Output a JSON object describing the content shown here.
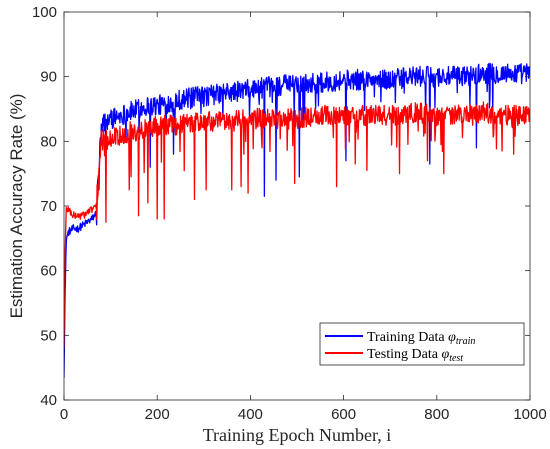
{
  "chart_data": {
    "type": "line",
    "title": "",
    "xlabel": "Training Epoch Number, i",
    "ylabel": "Estimation Accuracy Rate (%)",
    "xlim": [
      0,
      1000
    ],
    "ylim": [
      40,
      100
    ],
    "xticks": [
      "0",
      "200",
      "400",
      "600",
      "800",
      "1000"
    ],
    "yticks": [
      "40",
      "50",
      "60",
      "70",
      "80",
      "90",
      "100"
    ],
    "grid": false,
    "legend_position": "bottom-right",
    "x": [
      0,
      2,
      5,
      10,
      20,
      30,
      40,
      50,
      60,
      70,
      75,
      80,
      90,
      100,
      120,
      140,
      160,
      180,
      200,
      250,
      300,
      350,
      400,
      450,
      500,
      550,
      600,
      650,
      700,
      750,
      800,
      850,
      900,
      950,
      1000
    ],
    "series": [
      {
        "name_prefix": "Training Data ",
        "symbol": "φ",
        "subscript": "train",
        "color": "#0000ff",
        "values": [
          44,
          55,
          65,
          66,
          66.5,
          66.5,
          67,
          67.5,
          68,
          69,
          76,
          81,
          83,
          83.5,
          84,
          84.5,
          85,
          85.5,
          85.5,
          86.5,
          87,
          87.5,
          88,
          88.5,
          89,
          89,
          89.5,
          89.5,
          89.5,
          90,
          90,
          90,
          90.5,
          90.5,
          90.5
        ],
        "dips": [
          [
            75,
            72.5
          ],
          [
            185,
            76
          ],
          [
            235,
            78
          ],
          [
            430,
            71.5
          ],
          [
            455,
            74
          ],
          [
            505,
            74.5
          ],
          [
            605,
            77
          ],
          [
            785,
            76.5
          ],
          [
            885,
            79
          ]
        ]
      },
      {
        "name_prefix": "Testing Data ",
        "symbol": "φ",
        "subscript": "test",
        "color": "#ff0000",
        "values": [
          48,
          62,
          69.5,
          69.5,
          68.5,
          68.5,
          68.5,
          69,
          69.5,
          70,
          76,
          79.5,
          80,
          80.5,
          81,
          81.5,
          81.5,
          82,
          82.5,
          82.5,
          83,
          83,
          83.5,
          83.5,
          83.5,
          84,
          84,
          84,
          84,
          84.5,
          84,
          84,
          84.5,
          84,
          84
        ],
        "dips": [
          [
            90,
            67.5
          ],
          [
            140,
            72.5
          ],
          [
            160,
            68.5
          ],
          [
            180,
            70.5
          ],
          [
            200,
            68
          ],
          [
            215,
            68
          ],
          [
            280,
            71
          ],
          [
            305,
            72.5
          ],
          [
            360,
            72.5
          ],
          [
            380,
            73
          ],
          [
            395,
            72
          ],
          [
            495,
            73.5
          ],
          [
            585,
            73
          ],
          [
            625,
            76.5
          ],
          [
            650,
            75.5
          ],
          [
            720,
            75
          ],
          [
            780,
            77
          ],
          [
            815,
            75
          ],
          [
            940,
            78.5
          ],
          [
            965,
            78
          ]
        ]
      }
    ]
  }
}
